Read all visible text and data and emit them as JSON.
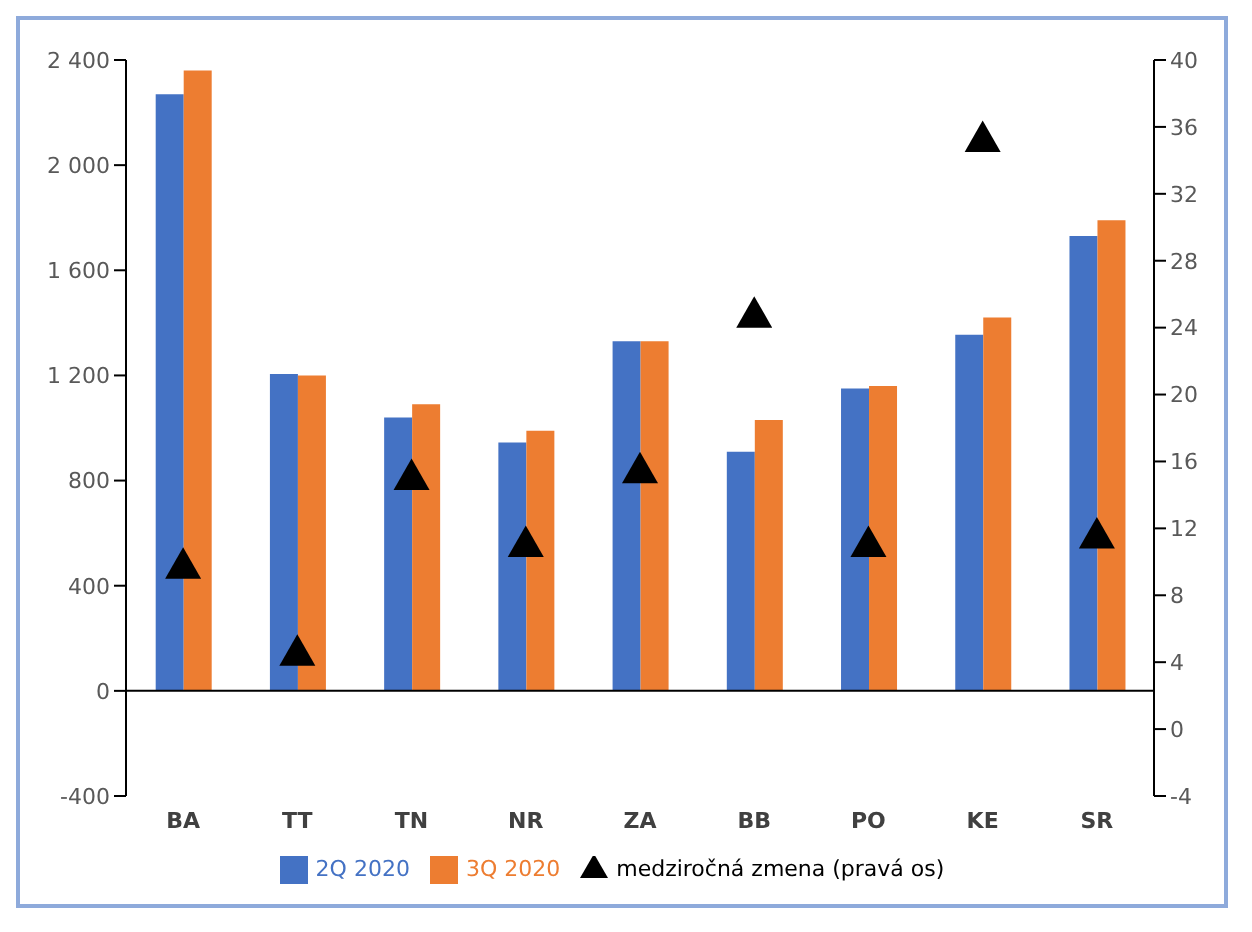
{
  "chart_data": {
    "type": "bar",
    "categories": [
      "BA",
      "TT",
      "TN",
      "NR",
      "ZA",
      "BB",
      "PO",
      "KE",
      "SR"
    ],
    "series": [
      {
        "name": "2Q 2020",
        "color": "#4472c4",
        "values": [
          2270,
          1205,
          1040,
          945,
          1330,
          910,
          1150,
          1355,
          1730
        ]
      },
      {
        "name": "3Q 2020",
        "color": "#ed7d31",
        "values": [
          2360,
          1200,
          1090,
          990,
          1330,
          1030,
          1160,
          1420,
          1790
        ]
      },
      {
        "name": "medziročná zmena (pravá os)",
        "type": "scatter",
        "axis": "y2",
        "color": "#000000",
        "marker": "triangle",
        "values": [
          9.8,
          4.6,
          15.1,
          11.1,
          15.5,
          24.8,
          11.1,
          35.3,
          11.6
        ]
      }
    ],
    "ylim": [
      -400,
      2400
    ],
    "yticks": [
      -400,
      0,
      400,
      800,
      {
        "value": 1200,
        "label": "1 200"
      },
      {
        "value": 1600,
        "label": "1 600"
      },
      {
        "value": 2000,
        "label": "2 000"
      },
      {
        "value": 2400,
        "label": "2 400"
      }
    ],
    "y2lim": [
      -4,
      40
    ],
    "y2ticks": [
      -4,
      0,
      4,
      8,
      12,
      16,
      20,
      24,
      28,
      32,
      36,
      40
    ],
    "ref_lines": [
      {
        "axis": "y",
        "value": 0,
        "color": "#000000"
      }
    ],
    "legend": "bottom"
  }
}
